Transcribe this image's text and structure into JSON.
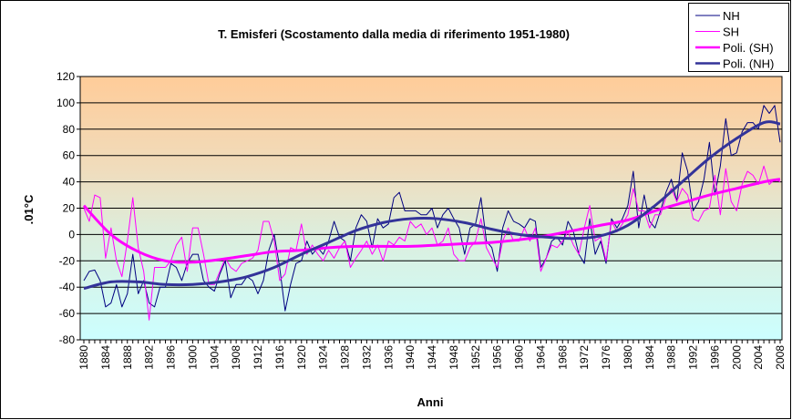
{
  "chart_data": {
    "type": "line",
    "title": "T. Emisferi  (Scostamento dalla media di riferimento 1951-1980)",
    "xlabel": "Anni",
    "ylabel": ".01°C",
    "ylim": [
      -80,
      120
    ],
    "yticks": [
      -80,
      -60,
      -40,
      -20,
      0,
      20,
      40,
      60,
      80,
      100,
      120
    ],
    "xlim": [
      1880,
      2008
    ],
    "xticks": [
      1880,
      1884,
      1888,
      1892,
      1896,
      1900,
      1904,
      1908,
      1912,
      1916,
      1920,
      1924,
      1928,
      1932,
      1936,
      1940,
      1944,
      1948,
      1952,
      1956,
      1960,
      1964,
      1968,
      1972,
      1976,
      1980,
      1984,
      1988,
      1992,
      1996,
      2000,
      2004,
      2008
    ],
    "grid": true,
    "legend_position": "top-right",
    "x_start": 1880,
    "series": [
      {
        "name": "NH",
        "color": "#000080",
        "width": 1,
        "values": [
          -35,
          -28,
          -27,
          -35,
          -55,
          -52,
          -38,
          -55,
          -45,
          -15,
          -45,
          -35,
          -52,
          -55,
          -40,
          -40,
          -22,
          -25,
          -35,
          -22,
          -15,
          -15,
          -35,
          -40,
          -43,
          -30,
          -20,
          -48,
          -38,
          -38,
          -32,
          -35,
          -45,
          -35,
          -12,
          0,
          -25,
          -58,
          -38,
          -22,
          -20,
          -5,
          -15,
          -10,
          -15,
          -5,
          10,
          -2,
          -5,
          -20,
          5,
          15,
          10,
          -10,
          12,
          5,
          8,
          28,
          32,
          18,
          18,
          18,
          15,
          15,
          20,
          5,
          15,
          20,
          12,
          5,
          -15,
          5,
          8,
          28,
          -5,
          -10,
          -28,
          5,
          18,
          10,
          8,
          5,
          12,
          10,
          -25,
          -18,
          -5,
          -2,
          -8,
          10,
          2,
          -15,
          -22,
          12,
          -15,
          -5,
          -22,
          12,
          5,
          12,
          22,
          48,
          5,
          30,
          10,
          5,
          18,
          32,
          42,
          25,
          62,
          48,
          18,
          25,
          42,
          70,
          30,
          52,
          88,
          60,
          62,
          78,
          85,
          85,
          80,
          98,
          92,
          98,
          70
        ]
      },
      {
        "name": "SH",
        "color": "#FF00FF",
        "width": 1,
        "values": [
          20,
          10,
          30,
          28,
          -18,
          5,
          -20,
          -32,
          -5,
          28,
          -10,
          -28,
          -65,
          -25,
          -25,
          -25,
          -20,
          -8,
          -2,
          -28,
          5,
          5,
          -15,
          -38,
          -38,
          -28,
          -18,
          -25,
          -28,
          -22,
          -20,
          -18,
          -12,
          10,
          10,
          -5,
          -35,
          -30,
          -10,
          -12,
          8,
          -15,
          -8,
          -15,
          -20,
          -12,
          -18,
          -10,
          -5,
          -25,
          -18,
          -12,
          -5,
          -15,
          -8,
          -20,
          -5,
          -8,
          -2,
          -5,
          10,
          5,
          8,
          0,
          5,
          -8,
          -5,
          5,
          -15,
          -20,
          -20,
          -10,
          -5,
          12,
          -10,
          -18,
          -25,
          -5,
          5,
          -5,
          -5,
          5,
          -5,
          5,
          -28,
          -18,
          -8,
          -10,
          -5,
          2,
          -8,
          -15,
          5,
          22,
          -5,
          -2,
          -20,
          10,
          2,
          8,
          15,
          35,
          18,
          18,
          5,
          15,
          15,
          28,
          35,
          25,
          35,
          30,
          12,
          10,
          18,
          20,
          45,
          15,
          50,
          25,
          18,
          38,
          48,
          45,
          38,
          52,
          38,
          42,
          40
        ]
      },
      {
        "name": "Poli. (SH)",
        "color": "#FF00FF",
        "width": 3,
        "trend_step": 5,
        "values": [
          22,
          0,
          -13,
          -20,
          -21,
          -19,
          -16,
          -13,
          -12,
          -10,
          -9,
          -9,
          -9,
          -8,
          -7,
          -6,
          -4,
          -1,
          3,
          7,
          11,
          18,
          24,
          30,
          35,
          40,
          42
        ]
      },
      {
        "name": "Poli. (NH)",
        "color": "#333399",
        "width": 3,
        "trend_step": 5,
        "values": [
          -41,
          -36,
          -36,
          -38,
          -38,
          -36,
          -32,
          -25,
          -15,
          -6,
          3,
          9,
          12,
          12,
          9,
          4,
          0,
          -2,
          -3,
          -1,
          7,
          22,
          40,
          58,
          73,
          85,
          84
        ]
      }
    ]
  }
}
